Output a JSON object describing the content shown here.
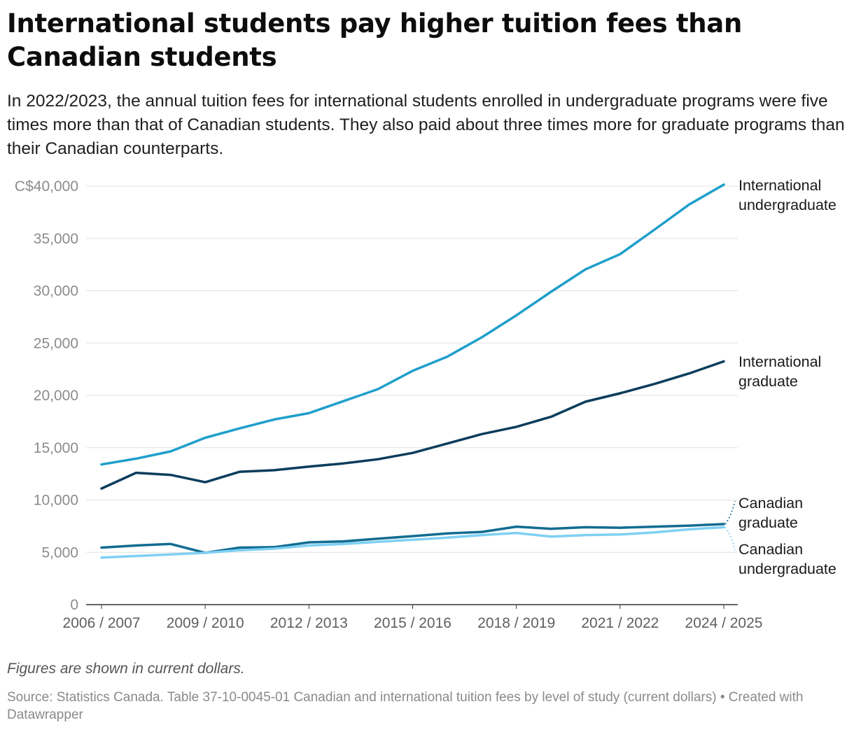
{
  "header": {
    "title": "International students pay higher tuition fees than Canadian students",
    "subtitle": "In 2022/2023, the annual tuition fees for international students enrolled in undergraduate programs were five times more than that of Canadian students. They also paid about three times more for graduate programs than their Canadian counterparts."
  },
  "footer": {
    "note": "Figures are shown in current dollars.",
    "source": "Source: Statistics Canada. Table 37-10-0045-01 Canadian and international tuition fees by level of study (current dollars) • Created with Datawrapper"
  },
  "chart_data": {
    "type": "line",
    "title": "International students pay higher tuition fees than Canadian students",
    "xlabel": "",
    "ylabel": "",
    "ylim": [
      0,
      40000
    ],
    "y_ticks": [
      0,
      5000,
      10000,
      15000,
      20000,
      25000,
      30000,
      35000,
      40000
    ],
    "y_tick_labels": [
      "0",
      "5,000",
      "10,000",
      "15,000",
      "20,000",
      "25,000",
      "30,000",
      "35,000",
      "C$40,000"
    ],
    "x_tick_labels": [
      "2006 / 2007",
      "2009 / 2010",
      "2012 / 2013",
      "2015 / 2016",
      "2018 / 2019",
      "2021 / 2022",
      "2024 / 2025"
    ],
    "x_tick_positions": [
      0,
      3,
      6,
      9,
      12,
      15,
      18
    ],
    "categories": [
      "2006 / 2007",
      "2007 / 2008",
      "2008 / 2009",
      "2009 / 2010",
      "2010 / 2011",
      "2011 / 2012",
      "2012 / 2013",
      "2013 / 2014",
      "2014 / 2015",
      "2015 / 2016",
      "2016 / 2017",
      "2017 / 2018",
      "2018 / 2019",
      "2019 / 2020",
      "2020 / 2021",
      "2021 / 2022",
      "2022 / 2023",
      "2023 / 2024",
      "2024 / 2025"
    ],
    "grid": true,
    "legend": "direct labels at line ends (right)",
    "series": [
      {
        "name": "International undergraduate",
        "label_lines": [
          "International",
          "undergraduate"
        ],
        "color": "#1f9fcb",
        "values": [
          13400,
          13950,
          14650,
          15950,
          16850,
          17700,
          18300,
          19450,
          20600,
          22350,
          23700,
          25550,
          27650,
          29900,
          32050,
          33500,
          35850,
          38250,
          40150
        ]
      },
      {
        "name": "International graduate",
        "label_lines": [
          "International",
          "graduate"
        ],
        "color": "#0b3d5c",
        "values": [
          11100,
          12600,
          12400,
          11700,
          12700,
          12850,
          13200,
          13500,
          13900,
          14500,
          15400,
          16300,
          17000,
          17950,
          19400,
          20200,
          21100,
          22100,
          23250
        ]
      },
      {
        "name": "Canadian graduate",
        "label_lines": [
          "Canadian",
          "graduate"
        ],
        "color": "#126c91",
        "values": [
          5450,
          5650,
          5800,
          4950,
          5450,
          5500,
          5950,
          6050,
          6300,
          6550,
          6800,
          6950,
          7450,
          7250,
          7400,
          7350,
          7450,
          7550,
          7700
        ]
      },
      {
        "name": "Canadian undergraduate",
        "label_lines": [
          "Canadian",
          "undergraduate"
        ],
        "color": "#7fd0f3",
        "values": [
          4500,
          4650,
          4800,
          4950,
          5200,
          5350,
          5650,
          5800,
          6000,
          6200,
          6400,
          6650,
          6850,
          6500,
          6650,
          6700,
          6900,
          7200,
          7400
        ]
      }
    ]
  }
}
